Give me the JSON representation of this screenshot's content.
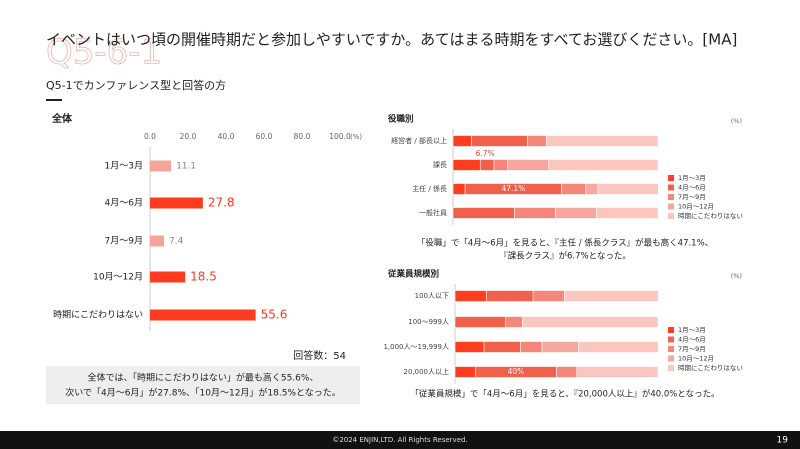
{
  "title": "イベントはいつ頃の開催時期だと参加しやすいですか。あてはまる時期をすべてお選びください。[MA]",
  "watermark": "Q5-6-1",
  "subtitle": "Q5-1でカンファレンス型と回答の方",
  "respondents": "回答数：54",
  "summary": [
    "全体では、「時期にこだわりはない」が最も高く55.6%、",
    "次いで「4月〜6月」が27.8%、「10月〜12月」が18.5%となった。"
  ],
  "copyright": "©2024 ENJIN,LTD. All Rights Reserved.",
  "page_number": "19",
  "chart_data": [
    {
      "type": "hbar",
      "title": "全体",
      "unit": "(%)",
      "categories": [
        "1月〜3月",
        "4月〜6月",
        "7月〜9月",
        "10月〜12月",
        "時期にこだわりはない"
      ],
      "values": [
        11.1,
        27.8,
        7.4,
        18.5,
        55.6
      ],
      "colors": [
        "#f4a59a",
        "#ff3b1f",
        "#f4a59a",
        "#ff3b1f",
        "#ff3b1f"
      ],
      "xlim": [
        0,
        100
      ],
      "xticks": [
        {
          "value": 0,
          "label": "0.0"
        },
        {
          "value": 20,
          "label": "20.0"
        },
        {
          "value": 40,
          "label": "40.0"
        },
        {
          "value": 60,
          "label": "60.0"
        },
        {
          "value": 80,
          "label": "80.0"
        },
        {
          "value": 100,
          "label": "100.0"
        }
      ]
    },
    {
      "type": "stacked_hbar",
      "title": "役職別",
      "unit": "(%)",
      "categories": [
        "経営者 / 部長以上",
        "課長",
        "主任 / 係長",
        "一般社員"
      ],
      "xlim": [
        0,
        100
      ],
      "series": [
        {
          "name": "1月〜3月",
          "color": "#ff3d1f",
          "values": [
            9.1,
            13.3,
            5.9,
            0
          ]
        },
        {
          "name": "4月〜6月",
          "color": "#f0604a",
          "values": [
            27.3,
            6.7,
            47.1,
            30
          ],
          "value_labels": [
            null,
            "6.7%",
            "47.1%",
            null
          ]
        },
        {
          "name": "7月〜9月",
          "color": "#f4877a",
          "values": [
            9.1,
            6.7,
            11.8,
            20
          ]
        },
        {
          "name": "10月〜12月",
          "color": "#f6a89f",
          "values": [
            0,
            20,
            5.9,
            20
          ]
        },
        {
          "name": "時期にこだわりはない",
          "color": "#f9c6c0",
          "values": [
            54.5,
            53.3,
            29.4,
            30
          ]
        }
      ],
      "caption": [
        "「役職」で「4月〜6月」を見ると、『主任 / 係長クラス』が最も高く47.1%、",
        "『課長クラス』が6.7%となった。"
      ]
    },
    {
      "type": "stacked_hbar",
      "title": "従業員規模別",
      "unit": "(%)",
      "categories": [
        "100人以下",
        "100〜999人",
        "1,000人〜19,999人",
        "20,000人以上"
      ],
      "xlim": [
        0,
        100
      ],
      "series": [
        {
          "name": "1月〜3月",
          "color": "#ff3d1f",
          "values": [
            15.4,
            0,
            14.3,
            10
          ]
        },
        {
          "name": "4月〜6月",
          "color": "#f0604a",
          "values": [
            23.1,
            25,
            17.9,
            40
          ],
          "value_labels": [
            null,
            null,
            null,
            "40%"
          ]
        },
        {
          "name": "7月〜9月",
          "color": "#f4877a",
          "values": [
            15.4,
            8.3,
            10.7,
            10
          ]
        },
        {
          "name": "10月〜12月",
          "color": "#f6a89f",
          "values": [
            0,
            0,
            17.9,
            0
          ]
        },
        {
          "name": "時期にこだわりはない",
          "color": "#f9c6c0",
          "values": [
            46.2,
            66.7,
            39.3,
            40
          ]
        }
      ],
      "caption": [
        "「従業員規模」で「4月〜6月」を見ると、『20,000人以上』が40.0%となった。"
      ]
    }
  ]
}
